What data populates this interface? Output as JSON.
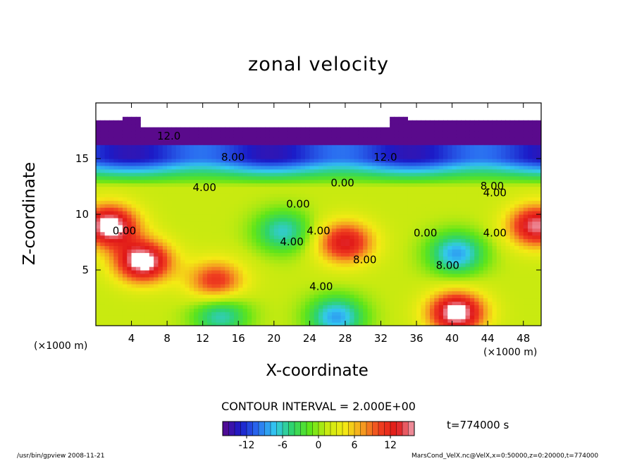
{
  "chart_data": {
    "type": "heatmap",
    "title": "zonal velocity",
    "xlabel": "X-coordinate",
    "ylabel": "Z-coordinate",
    "x_unit_left": "(×1000 m)",
    "x_unit_right": "(×1000 m)",
    "xlim": [
      0,
      50
    ],
    "ylim": [
      0,
      20
    ],
    "x_ticks": [
      4,
      8,
      12,
      16,
      20,
      24,
      28,
      32,
      36,
      40,
      44,
      48
    ],
    "y_ticks": [
      5,
      10,
      15
    ],
    "contour_interval_text": "CONTOUR INTERVAL = 2.000E+00",
    "time_text": "t=774000 s",
    "colorbar": {
      "range": [
        -16,
        16
      ],
      "ticks": [
        -12,
        -6,
        0,
        6,
        12
      ],
      "palette": [
        "#5a0a8c",
        "#1b1bc8",
        "#2a6cf0",
        "#33c8f0",
        "#2fd46a",
        "#5ee51a",
        "#c8ea10",
        "#f4ea14",
        "#f5a020",
        "#f04020",
        "#e01818",
        "#f0a0b0"
      ]
    },
    "field_features": [
      {
        "x": 1.5,
        "z": 9.0,
        "value": 16,
        "kind": "max"
      },
      {
        "x": 5.3,
        "z": 5.8,
        "value": 16,
        "kind": "max"
      },
      {
        "x": 13.5,
        "z": 4.0,
        "value": 10,
        "kind": "max"
      },
      {
        "x": 21.0,
        "z": 8.5,
        "value": -8,
        "kind": "min"
      },
      {
        "x": 28.0,
        "z": 7.5,
        "value": 12,
        "kind": "max"
      },
      {
        "x": 40.5,
        "z": 6.5,
        "value": -10,
        "kind": "min"
      },
      {
        "x": 40.5,
        "z": 1.2,
        "value": 16,
        "kind": "max"
      },
      {
        "x": 49.5,
        "z": 9.0,
        "value": 14,
        "kind": "max"
      },
      {
        "x": 14.0,
        "z": 1.0,
        "value": -8,
        "kind": "min"
      },
      {
        "x": 27.0,
        "z": 0.8,
        "value": -10,
        "kind": "min"
      },
      {
        "x": 25.0,
        "z": 15.0,
        "value": -12,
        "kind": "band"
      },
      {
        "x": 25.0,
        "z": 18.5,
        "value": -16,
        "kind": "band"
      }
    ],
    "contour_labels": [
      {
        "text": "12.0",
        "x": 8.2,
        "z": 16.7
      },
      {
        "text": "8.00",
        "x": 15.4,
        "z": 14.8
      },
      {
        "text": "12.0",
        "x": 32.5,
        "z": 14.8
      },
      {
        "text": "4.00",
        "x": 12.2,
        "z": 12.1
      },
      {
        "text": "0.00",
        "x": 27.7,
        "z": 12.5
      },
      {
        "text": "8.00",
        "x": 44.5,
        "z": 12.2
      },
      {
        "text": "4.00",
        "x": 44.8,
        "z": 11.6
      },
      {
        "text": "0.00",
        "x": 22.7,
        "z": 10.6
      },
      {
        "text": "0.00",
        "x": 37.0,
        "z": 8.0
      },
      {
        "text": "4.00",
        "x": 22.0,
        "z": 7.2
      },
      {
        "text": "4.00",
        "x": 25.0,
        "z": 8.2
      },
      {
        "text": "8.00",
        "x": 30.2,
        "z": 5.6
      },
      {
        "text": "8.00",
        "x": 39.5,
        "z": 5.1
      },
      {
        "text": "4.00",
        "x": 44.8,
        "z": 8.0
      },
      {
        "text": "4.00",
        "x": 25.3,
        "z": 3.2
      },
      {
        "text": "0.00",
        "x": 3.2,
        "z": 8.2
      }
    ]
  },
  "footer": {
    "left": "/usr/bin/gpview   2008-11-21",
    "right": "MarsCond_VelX.nc@VelX,x=0:50000,z=0:20000,t=774000"
  }
}
